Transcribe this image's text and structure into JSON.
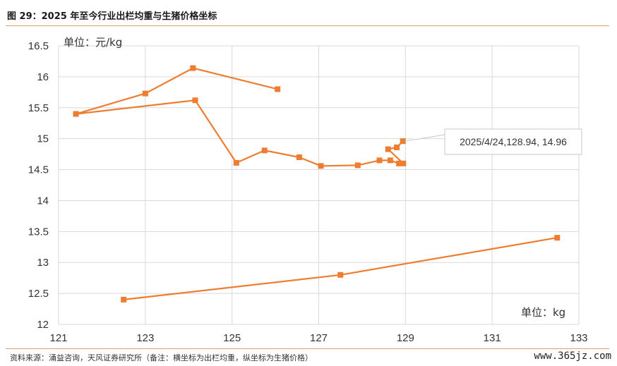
{
  "header": {
    "title": "图 29：2025 年至今行业出栏均重与生猪价格坐标"
  },
  "footer": {
    "source": "资料来源：涌益咨询，天风证券研究所（备注：横坐标为出栏均重，纵坐标为生猪价格）",
    "watermark": "www.365jz.com"
  },
  "colors": {
    "series": "#ed7d31",
    "grid": "#d9d9d9",
    "rule": "#e0a060"
  },
  "chart_data": {
    "type": "scatter",
    "connected": true,
    "ylabel": "单位：元/kg",
    "xlabel": "单位：kg",
    "xlim": [
      121,
      133
    ],
    "ylim": [
      12,
      16.5
    ],
    "xticks": [
      "121",
      "123",
      "125",
      "127",
      "129",
      "131",
      "133"
    ],
    "yticks": [
      "12",
      "12.5",
      "13",
      "13.5",
      "14",
      "14.5",
      "15",
      "15.5",
      "16",
      "16.5"
    ],
    "grid": true,
    "marker": "square",
    "series": [
      {
        "points": [
          [
            122.5,
            12.4
          ],
          [
            127.5,
            12.8
          ],
          [
            132.5,
            13.4
          ]
        ]
      },
      {
        "points": [
          [
            121.4,
            15.4
          ],
          [
            123.0,
            15.73
          ],
          [
            124.1,
            16.14
          ],
          [
            126.05,
            15.8
          ]
        ]
      },
      {
        "points": [
          [
            121.4,
            15.4
          ],
          [
            124.15,
            15.62
          ],
          [
            125.1,
            14.61
          ],
          [
            125.75,
            14.81
          ],
          [
            126.55,
            14.7
          ],
          [
            127.05,
            14.56
          ],
          [
            127.9,
            14.57
          ],
          [
            128.4,
            14.65
          ],
          [
            128.65,
            14.65
          ],
          [
            128.85,
            14.6
          ],
          [
            128.95,
            14.6
          ],
          [
            128.6,
            14.83
          ],
          [
            128.8,
            14.86
          ],
          [
            128.94,
            14.96
          ]
        ]
      }
    ],
    "annotations": [
      {
        "text": "2025/4/24,128.94, 14.96",
        "x": 128.94,
        "y": 14.96
      }
    ]
  }
}
